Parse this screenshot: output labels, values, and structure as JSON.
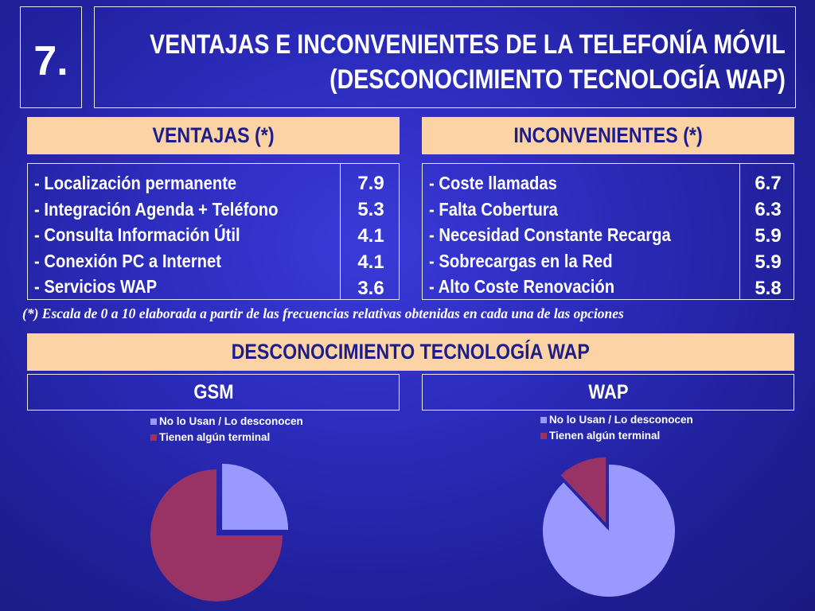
{
  "header": {
    "number": "7.",
    "title_line1": "VENTAJAS E INCONVENIENTES DE LA TELEFONÍA MÓVIL",
    "title_line2": "(DESCONOCIMIENTO TECNOLOGÍA WAP)"
  },
  "ventajas": {
    "heading": "VENTAJAS (*)",
    "items": [
      {
        "label": "- Localización permanente",
        "value": "7.9"
      },
      {
        "label": "- Integración Agenda + Teléfono",
        "value": "5.3"
      },
      {
        "label": "- Consulta Información Útil",
        "value": "4.1"
      },
      {
        "label": "- Conexión PC a Internet",
        "value": "4.1"
      },
      {
        "label": "- Servicios WAP",
        "value": "3.6"
      }
    ]
  },
  "inconvenientes": {
    "heading": "INCONVENIENTES (*)",
    "items": [
      {
        "label": "- Coste llamadas",
        "value": "6.7"
      },
      {
        "label": "- Falta Cobertura",
        "value": "6.3"
      },
      {
        "label": "- Necesidad Constante Recarga",
        "value": "5.9"
      },
      {
        "label": "- Sobrecargas en la Red",
        "value": "5.9"
      },
      {
        "label": "- Alto Coste Renovación",
        "value": "5.8"
      }
    ]
  },
  "note": "(*) Escala de 0 a 10 elaborada a partir de las frecuencias relativas obtenidas en cada una de las opciones",
  "wap_section": {
    "heading": "DESCONOCIMIENTO TECNOLOGÍA WAP",
    "gsm_label": "GSM",
    "wap_label": "WAP"
  },
  "colors": {
    "background": "#2c2cbe",
    "bar": "#fbd3a4",
    "no_lo_usan": "#9999ff",
    "tienen_terminal": "#993366"
  },
  "chart_data": [
    {
      "type": "pie",
      "title": "GSM",
      "labels": [
        "No lo Usan / Lo desconocen",
        "Tienen algún terminal"
      ],
      "values": [
        25,
        75
      ],
      "explode": [
        true,
        false
      ],
      "legend": "top"
    },
    {
      "type": "pie",
      "title": "WAP",
      "labels": [
        "No lo Usan / Lo desconocen",
        "Tienen algún terminal"
      ],
      "values": [
        88,
        12
      ],
      "explode": [
        false,
        true
      ],
      "legend": "top"
    }
  ]
}
